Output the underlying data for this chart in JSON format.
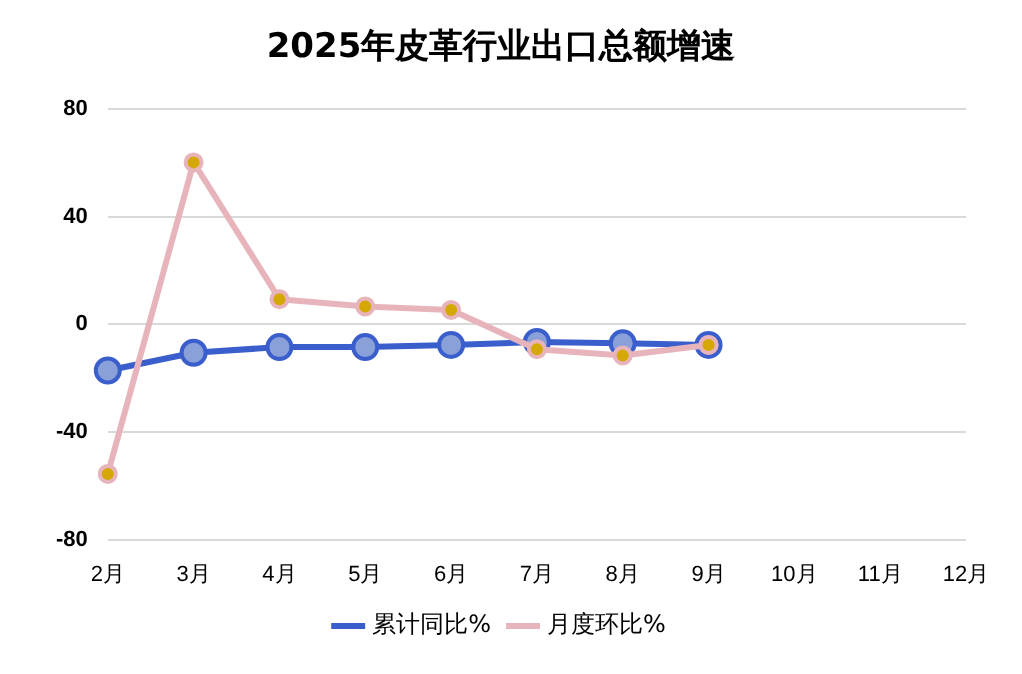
{
  "chart_data": {
    "type": "line",
    "title": "2025年皮革行业出口总额增速",
    "categories": [
      "2月",
      "3月",
      "4月",
      "5月",
      "6月",
      "7月",
      "8月",
      "9月",
      "10月",
      "11月",
      "12月"
    ],
    "series": [
      {
        "name": "累计同比%",
        "color": "#3a5fcd",
        "values": [
          -17.2,
          -10.6,
          -8.5,
          -8.5,
          -7.7,
          -6.6,
          -7.1,
          -7.7,
          null,
          null,
          null
        ]
      },
      {
        "name": "月度环比%",
        "color": "#e8b4bc",
        "values": [
          -55.6,
          60.1,
          9.3,
          6.6,
          5.3,
          -9.3,
          -11.6,
          -7.7,
          null,
          null,
          null
        ]
      }
    ],
    "ylim": [
      -80,
      80
    ],
    "yticks": [
      -80,
      -40,
      0,
      40,
      80
    ],
    "grid": "y",
    "legend": "bottom",
    "marker": "circle",
    "line_style": "solid"
  }
}
